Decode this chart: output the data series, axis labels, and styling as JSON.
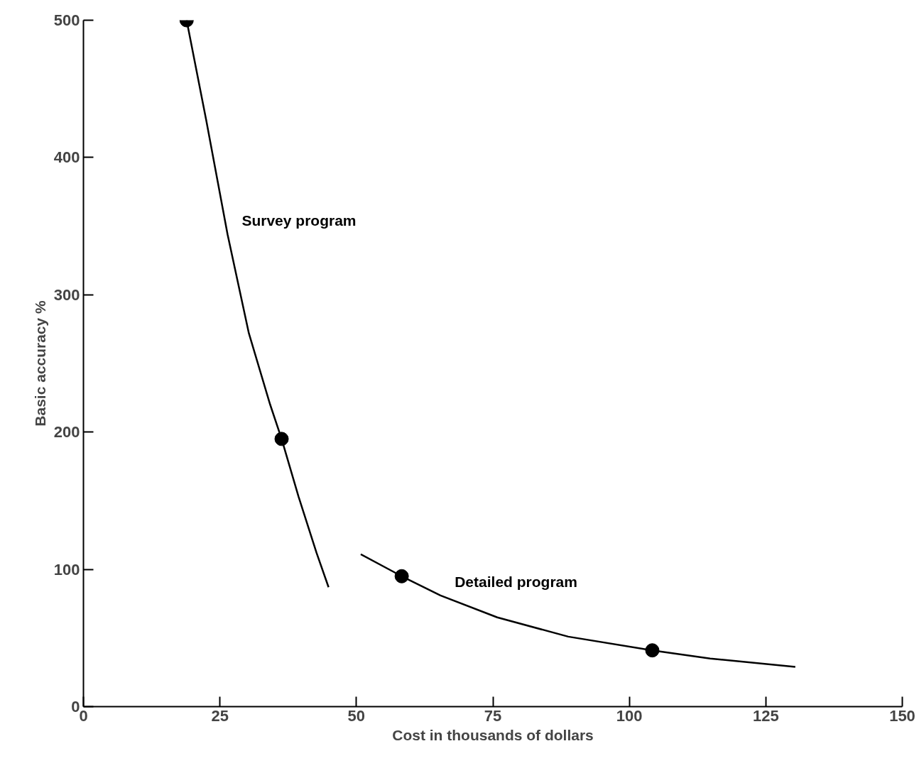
{
  "chart_data": {
    "type": "line",
    "xlabel": "Cost in thousands of dollars",
    "ylabel": "Basic accuracy %",
    "xlim": [
      0,
      150
    ],
    "ylim": [
      0,
      500
    ],
    "xticks": [
      0,
      25,
      50,
      75,
      100,
      125,
      150
    ],
    "yticks": [
      0,
      100,
      200,
      300,
      400,
      500
    ],
    "grid": false,
    "legend": false,
    "marker": "none",
    "line_style": "solid",
    "series": [
      {
        "name": "Survey program",
        "color": "#000000",
        "x": [
          18.9,
          22.5,
          26.4,
          30.3,
          34.2,
          36.3,
          39.4,
          42.7,
          44.9
        ],
        "values": [
          500,
          427,
          344,
          272,
          220,
          195,
          153,
          112,
          87
        ]
      },
      {
        "name": "Detailed program",
        "color": "#000000",
        "x": [
          50.8,
          58.3,
          65.4,
          75.8,
          88.8,
          104.2,
          114.8,
          130.4
        ],
        "values": [
          111,
          95,
          81,
          65,
          51,
          41,
          35,
          29
        ]
      },
      {
        "type": "scatter",
        "marker": "circle",
        "color": "#000000",
        "x": [
          18.9,
          36.3,
          58.3,
          104.2
        ],
        "values": [
          500,
          195,
          95,
          41
        ]
      }
    ]
  }
}
